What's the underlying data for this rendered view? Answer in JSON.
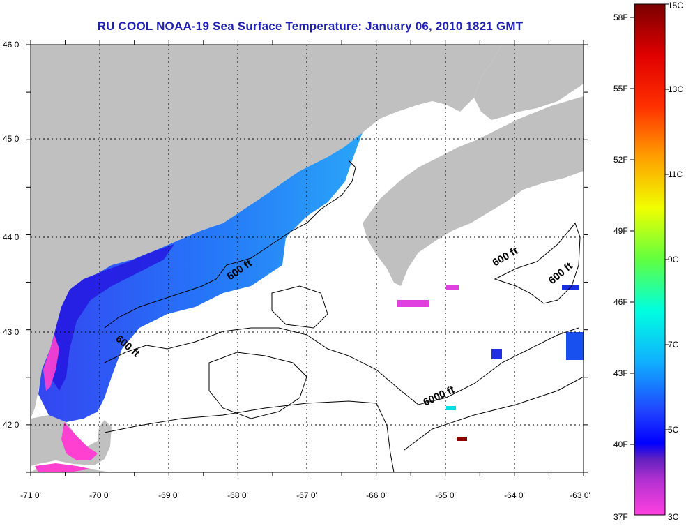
{
  "title": "RU COOL  NOAA-19  Sea Surface Temperature:  January 06, 2010 1821 GMT",
  "colors": {
    "land": "#c0c0c0",
    "ocean_nodata": "#ffffff",
    "frame": "#000000",
    "title": "#1f1fb4"
  },
  "map": {
    "lon_range": [
      -71,
      -63
    ],
    "lat_range": [
      41.5,
      46
    ],
    "x_ticks": [
      "-71 0'",
      "-70 0'",
      "-69 0'",
      "-68 0'",
      "-67 0'",
      "-66 0'",
      "-65 0'",
      "-64 0'",
      "-63 0'"
    ],
    "y_ticks": [
      "46 0'",
      "45 0'",
      "44 0'",
      "43 0'",
      "42 0'"
    ],
    "gridlines": "dotted",
    "depth_labels": [
      "600 ft",
      "600 ft",
      "600 ft",
      "600 ft",
      "6000 ft"
    ]
  },
  "colorbar": {
    "fahrenheit_labels": [
      "58F",
      "55F",
      "52F",
      "49F",
      "46F",
      "43F",
      "40F",
      "37F"
    ],
    "celsius_labels": [
      "15C",
      "13C",
      "11C",
      "9C",
      "7C",
      "5C",
      "3C"
    ],
    "range_c": [
      3,
      15
    ],
    "gradient": [
      "#8b0000",
      "#ff0000",
      "#ff8000",
      "#ffff00",
      "#80ff00",
      "#00ffff",
      "#1e90ff",
      "#0000ff",
      "#8000c0",
      "#ff40d0"
    ]
  }
}
